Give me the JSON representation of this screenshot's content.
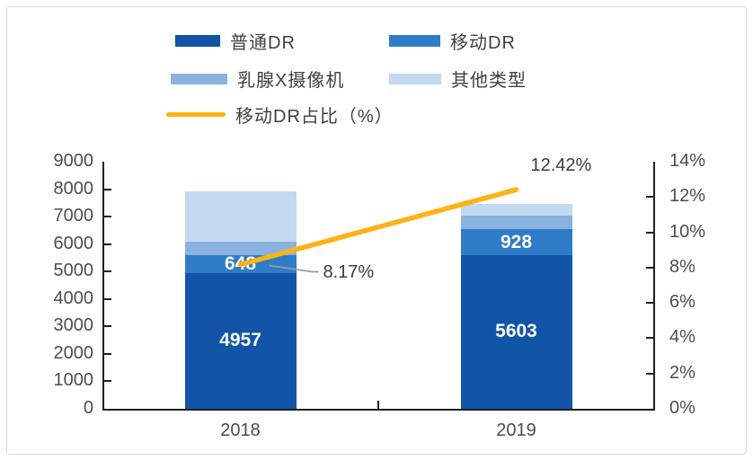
{
  "chart_data": {
    "type": "bar",
    "stacked": true,
    "title": "",
    "categories": [
      "2018",
      "2019"
    ],
    "series": [
      {
        "name": "普通DR",
        "color": "#1254A8",
        "values": [
          4957,
          5603
        ],
        "show_labels": true
      },
      {
        "name": "移动DR",
        "color": "#2F7CC9",
        "values": [
          648,
          928
        ],
        "show_labels": true
      },
      {
        "name": "乳腺X摄像机",
        "color": "#8AB2DE",
        "values": [
          490,
          510
        ],
        "show_labels": false
      },
      {
        "name": "其他类型",
        "color": "#C3D9F0",
        "values": [
          1836,
          431
        ],
        "show_labels": false
      }
    ],
    "line_series": {
      "name": "移动DR占比（%）",
      "color": "#FBB316",
      "axis": "right",
      "values": [
        8.17,
        12.42
      ]
    },
    "left_axis": {
      "min": 0,
      "max": 9000,
      "step": 1000,
      "tick_values": [
        9000,
        8000,
        7000,
        6000,
        5000,
        4000,
        3000,
        2000,
        1000,
        0
      ],
      "tick_labels": [
        "9000",
        "8000",
        "7000",
        "6000",
        "5000",
        "4000",
        "3000",
        "2000",
        "1000",
        "0"
      ]
    },
    "right_axis": {
      "min": 0,
      "max": 14,
      "step": 2,
      "tick_values": [
        14,
        12,
        10,
        8,
        6,
        4,
        2,
        0
      ],
      "tick_labels": [
        "14%",
        "12%",
        "10%",
        "8%",
        "6%",
        "4%",
        "2%",
        "0%"
      ]
    },
    "annotations": [
      {
        "text": "8.17%",
        "attach": "start"
      },
      {
        "text": "12.42%",
        "attach": "end"
      }
    ],
    "grid": false,
    "legend_position": "top-left"
  }
}
